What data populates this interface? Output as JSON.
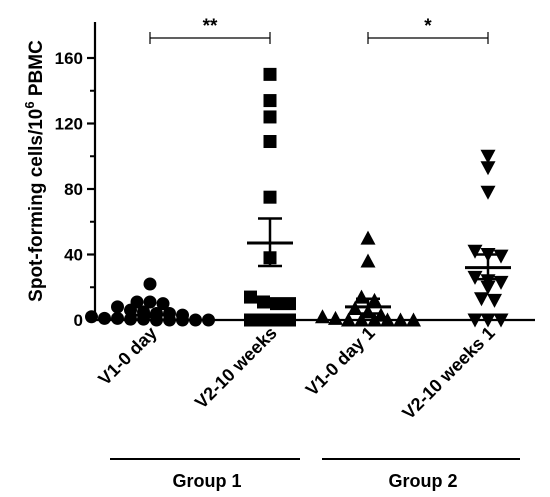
{
  "chart_data": {
    "type": "scatter",
    "ylabel": "Spot-forming cells/10",
    "ylabel_sup": "6",
    "ylabel_suffix": " PBMC",
    "ylim": [
      0,
      170
    ],
    "yticks": [
      "0",
      "40",
      "80",
      "120",
      "160"
    ],
    "categories": [
      "V1-0 day",
      "V2-10 weeks",
      "V1-0 day 1",
      "V2-10 weeks 1"
    ],
    "groups": [
      {
        "label": "Group 1",
        "categories": [
          0,
          1
        ]
      },
      {
        "label": "Group 2",
        "categories": [
          2,
          3
        ]
      }
    ],
    "significance": [
      {
        "from": 0,
        "to": 1,
        "label": "**"
      },
      {
        "from": 2,
        "to": 3,
        "label": "*"
      }
    ],
    "series": [
      {
        "category": "V1-0 day",
        "marker": "circle",
        "mean": 3,
        "sem": [
          2,
          4
        ],
        "values": [
          22,
          11,
          11,
          10,
          8,
          6,
          5,
          4,
          4,
          3,
          2,
          1,
          1,
          0.5,
          0.5,
          0,
          0,
          0,
          0,
          0
        ]
      },
      {
        "category": "V2-10 weeks",
        "marker": "square",
        "mean": 47,
        "sem": [
          33,
          62
        ],
        "values": [
          150,
          134,
          124,
          109,
          75,
          38,
          14,
          11,
          10,
          10,
          0,
          0,
          0,
          0
        ]
      },
      {
        "category": "V1-0 day 1",
        "marker": "triangle-up",
        "mean": 8,
        "sem": [
          4,
          13
        ],
        "values": [
          50,
          36,
          14,
          12,
          7,
          5,
          3,
          2,
          1,
          0,
          0,
          0,
          0,
          0,
          0
        ]
      },
      {
        "category": "V2-10 weeks 1",
        "marker": "triangle-down",
        "mean": 32,
        "sem": [
          25,
          40
        ],
        "values": [
          100,
          93,
          78,
          42,
          40,
          39,
          26,
          24,
          23,
          20,
          13,
          12,
          0,
          0,
          0
        ]
      }
    ]
  }
}
